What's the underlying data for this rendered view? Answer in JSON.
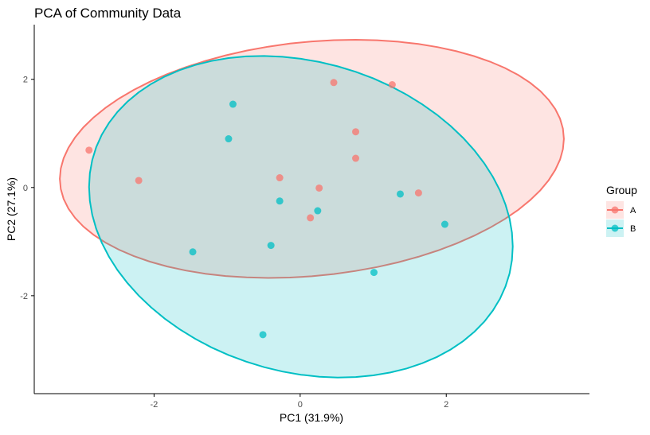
{
  "chart_data": {
    "type": "scatter",
    "title": "PCA of Community Data",
    "xlabel": "PC1 (31.9%)",
    "ylabel": "PC2 (27.1%)",
    "xlim": [
      -3.64,
      3.96
    ],
    "ylim": [
      -3.81,
      3.01
    ],
    "xticks": [
      -2,
      0,
      2
    ],
    "yticks": [
      -2,
      0,
      2
    ],
    "grid": false,
    "legend": {
      "title": "Group",
      "placement": "right"
    },
    "series": [
      {
        "name": "A",
        "color": "#F8766D",
        "points": [
          [
            -2.89,
            0.69
          ],
          [
            -2.21,
            0.13
          ],
          [
            0.46,
            1.94
          ],
          [
            1.26,
            1.9
          ],
          [
            0.76,
            1.03
          ],
          [
            0.76,
            0.54
          ],
          [
            -0.28,
            0.18
          ],
          [
            0.26,
            -0.01
          ],
          [
            0.14,
            -0.56
          ],
          [
            1.62,
            -0.1
          ]
        ],
        "ellipse": {
          "cx": 0.16,
          "cy": 0.53,
          "rx": 3.45,
          "ry": 2.17,
          "shear": 0.37
        }
      },
      {
        "name": "B",
        "color": "#00BFC4",
        "points": [
          [
            -0.92,
            1.54
          ],
          [
            -0.98,
            0.9
          ],
          [
            -0.28,
            -0.25
          ],
          [
            0.24,
            -0.43
          ],
          [
            1.37,
            -0.12
          ],
          [
            1.98,
            -0.68
          ],
          [
            -1.47,
            -1.19
          ],
          [
            -0.4,
            -1.07
          ],
          [
            1.01,
            -1.57
          ],
          [
            -0.51,
            -2.72
          ]
        ],
        "ellipse": {
          "cx": 0.01,
          "cy": -0.54,
          "rx": 2.9,
          "ry": 2.92,
          "shear": -0.55
        }
      }
    ]
  }
}
